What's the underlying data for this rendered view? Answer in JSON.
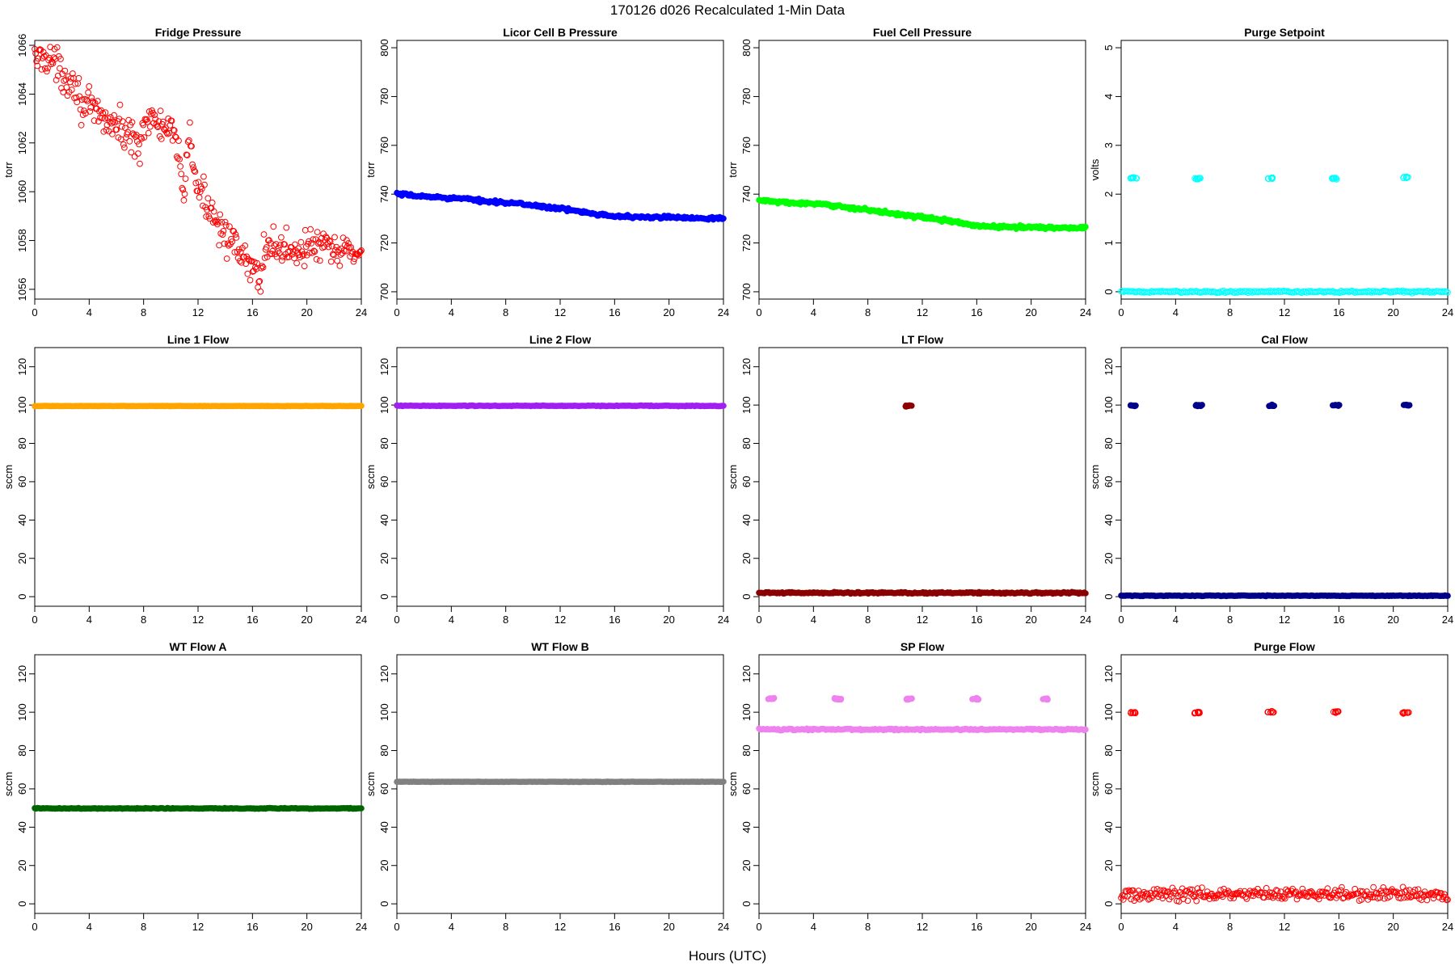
{
  "figure": {
    "title": "170126   d026   Recalculated 1-Min Data",
    "xlabel": "Hours (UTC)"
  },
  "chart_data": [
    {
      "type": "scatter",
      "title": "Fridge Pressure",
      "ylabel": "torr",
      "xlim": [
        0,
        24
      ],
      "ylim": [
        1055.6,
        1066.2
      ],
      "xticks": [
        0,
        4,
        8,
        12,
        16,
        20,
        24
      ],
      "yticks": [
        1056,
        1058,
        1060,
        1062,
        1064,
        1066
      ],
      "marker": "open",
      "color": "#ff0000",
      "series": [
        {
          "x": [
            0,
            1,
            2,
            3,
            3.5,
            4,
            5,
            6,
            7,
            7.8,
            8,
            9,
            10,
            10.5,
            10.9,
            11.0,
            11.3,
            11.4,
            12,
            13,
            14,
            15,
            16,
            16.7,
            16.8,
            17,
            18,
            19,
            20,
            21,
            22,
            23,
            24
          ],
          "y": [
            1065.4,
            1065.6,
            1064.8,
            1064.5,
            1063.5,
            1063.4,
            1063.0,
            1062.7,
            1062.3,
            1061.9,
            1063.0,
            1062.8,
            1062.4,
            1061.7,
            1060.3,
            1060.0,
            1062.5,
            1062.0,
            1060.0,
            1059.3,
            1058.3,
            1057.4,
            1056.8,
            1056.5,
            1057.6,
            1057.8,
            1057.7,
            1057.6,
            1057.7,
            1057.8,
            1057.5,
            1057.6,
            1057.5
          ]
        }
      ],
      "spread": 0.35,
      "point_count": 380
    },
    {
      "type": "scatter",
      "title": "Licor Cell B Pressure",
      "ylabel": "torr",
      "xlim": [
        0,
        24
      ],
      "ylim": [
        697,
        803
      ],
      "xticks": [
        0,
        4,
        8,
        12,
        16,
        20,
        24
      ],
      "yticks": [
        700,
        720,
        740,
        760,
        780,
        800
      ],
      "marker": "filled",
      "color": "#0000ff",
      "series": [
        {
          "x": [
            0,
            2,
            4,
            6,
            8,
            10,
            12,
            14,
            16,
            18,
            20,
            22,
            24
          ],
          "y": [
            740,
            739,
            738.5,
            737.5,
            736.5,
            735.5,
            734,
            732.5,
            731,
            730.5,
            730.5,
            730.3,
            730.1
          ]
        }
      ],
      "spread": 0.3,
      "point_count": 260
    },
    {
      "type": "scatter",
      "title": "Fuel Cell Pressure",
      "ylabel": "torr",
      "xlim": [
        0,
        24
      ],
      "ylim": [
        697,
        803
      ],
      "xticks": [
        0,
        4,
        8,
        12,
        16,
        20,
        24
      ],
      "yticks": [
        700,
        720,
        740,
        760,
        780,
        800
      ],
      "marker": "filled",
      "color": "#00ff00",
      "series": [
        {
          "x": [
            0,
            2,
            4,
            6,
            8,
            10,
            12,
            14,
            16,
            18,
            20,
            22,
            24
          ],
          "y": [
            737.5,
            736.5,
            736,
            735,
            733.5,
            732,
            730.5,
            729,
            727,
            726.5,
            726.5,
            726.2,
            726.3
          ]
        }
      ],
      "spread": 0.3,
      "point_count": 260
    },
    {
      "type": "scatter",
      "title": "Purge Setpoint",
      "ylabel": "volts",
      "xlim": [
        0,
        24
      ],
      "ylim": [
        -0.15,
        5.15
      ],
      "xticks": [
        0,
        4,
        8,
        12,
        16,
        20,
        24
      ],
      "yticks": [
        0,
        1,
        2,
        3,
        4,
        5
      ],
      "marker": "open",
      "color": "#00ffff",
      "series": [
        {
          "x": [
            0,
            24
          ],
          "y": [
            0,
            0
          ]
        }
      ],
      "clusters": [
        {
          "x": 0.9,
          "y": 2.33
        },
        {
          "x": 5.6,
          "y": 2.32
        },
        {
          "x": 10.9,
          "y": 2.33
        },
        {
          "x": 15.7,
          "y": 2.32
        },
        {
          "x": 20.9,
          "y": 2.34
        }
      ],
      "spread": 0.01,
      "point_count": 240
    },
    {
      "type": "scatter",
      "title": "Line 1 Flow",
      "ylabel": "sccm",
      "xlim": [
        0,
        24
      ],
      "ylim": [
        -5,
        130
      ],
      "xticks": [
        0,
        4,
        8,
        12,
        16,
        20,
        24
      ],
      "yticks": [
        0,
        20,
        40,
        60,
        80,
        100,
        120
      ],
      "marker": "filled",
      "color": "#ffa500",
      "series": [
        {
          "x": [
            0,
            24
          ],
          "y": [
            99.5,
            99.5
          ]
        }
      ],
      "spread": 0.05,
      "point_count": 240
    },
    {
      "type": "scatter",
      "title": "Line 2 Flow",
      "ylabel": "sccm",
      "xlim": [
        0,
        24
      ],
      "ylim": [
        -5,
        130
      ],
      "xticks": [
        0,
        4,
        8,
        12,
        16,
        20,
        24
      ],
      "yticks": [
        0,
        20,
        40,
        60,
        80,
        100,
        120
      ],
      "marker": "filled",
      "color": "#a020f0",
      "series": [
        {
          "x": [
            0,
            24
          ],
          "y": [
            99.6,
            99.6
          ]
        }
      ],
      "spread": 0.1,
      "point_count": 240
    },
    {
      "type": "scatter",
      "title": "LT Flow",
      "ylabel": "sccm",
      "xlim": [
        0,
        24
      ],
      "ylim": [
        -5,
        130
      ],
      "xticks": [
        0,
        4,
        8,
        12,
        16,
        20,
        24
      ],
      "yticks": [
        0,
        20,
        40,
        60,
        80,
        100,
        120
      ],
      "marker": "filled",
      "color": "#8b0000",
      "series": [
        {
          "x": [
            0,
            24
          ],
          "y": [
            2,
            2
          ]
        }
      ],
      "clusters": [
        {
          "x": 11.0,
          "y": 99.5
        }
      ],
      "spread": 0.2,
      "point_count": 240
    },
    {
      "type": "scatter",
      "title": "Cal Flow",
      "ylabel": "sccm",
      "xlim": [
        0,
        24
      ],
      "ylim": [
        -5,
        130
      ],
      "xticks": [
        0,
        4,
        8,
        12,
        16,
        20,
        24
      ],
      "yticks": [
        0,
        20,
        40,
        60,
        80,
        100,
        120
      ],
      "marker": "filled",
      "color": "#00008b",
      "series": [
        {
          "x": [
            0,
            24
          ],
          "y": [
            0.5,
            0.5
          ]
        }
      ],
      "clusters": [
        {
          "x": 0.9,
          "y": 99.8
        },
        {
          "x": 5.7,
          "y": 99.8
        },
        {
          "x": 11.0,
          "y": 99.8
        },
        {
          "x": 15.8,
          "y": 99.8
        },
        {
          "x": 21.0,
          "y": 99.8
        }
      ],
      "spread": 0.1,
      "point_count": 240
    },
    {
      "type": "scatter",
      "title": "WT Flow A",
      "ylabel": "sccm",
      "xlim": [
        0,
        24
      ],
      "ylim": [
        -5,
        130
      ],
      "xticks": [
        0,
        4,
        8,
        12,
        16,
        20,
        24
      ],
      "yticks": [
        0,
        20,
        40,
        60,
        80,
        100,
        120
      ],
      "marker": "filled",
      "color": "#006400",
      "series": [
        {
          "x": [
            0,
            24
          ],
          "y": [
            49.8,
            49.8
          ]
        }
      ],
      "spread": 0.1,
      "point_count": 240
    },
    {
      "type": "scatter",
      "title": "WT Flow B",
      "ylabel": "sccm",
      "xlim": [
        0,
        24
      ],
      "ylim": [
        -5,
        130
      ],
      "xticks": [
        0,
        4,
        8,
        12,
        16,
        20,
        24
      ],
      "yticks": [
        0,
        20,
        40,
        60,
        80,
        100,
        120
      ],
      "marker": "filled",
      "color": "#808080",
      "series": [
        {
          "x": [
            0,
            24
          ],
          "y": [
            63.7,
            63.7
          ]
        }
      ],
      "spread": 0.05,
      "point_count": 240
    },
    {
      "type": "scatter",
      "title": "SP Flow",
      "ylabel": "sccm",
      "xlim": [
        0,
        24
      ],
      "ylim": [
        -5,
        130
      ],
      "xticks": [
        0,
        4,
        8,
        12,
        16,
        20,
        24
      ],
      "yticks": [
        0,
        20,
        40,
        60,
        80,
        100,
        120
      ],
      "marker": "filled",
      "color": "#ee82ee",
      "series": [
        {
          "x": [
            0,
            24
          ],
          "y": [
            91,
            91
          ]
        }
      ],
      "clusters": [
        {
          "x": 0.9,
          "y": 107
        },
        {
          "x": 5.8,
          "y": 107
        },
        {
          "x": 11.0,
          "y": 107
        },
        {
          "x": 15.9,
          "y": 107
        },
        {
          "x": 21.0,
          "y": 107
        }
      ],
      "spread": 0.2,
      "point_count": 240
    },
    {
      "type": "scatter",
      "title": "Purge Flow",
      "ylabel": "sccm",
      "xlim": [
        0,
        24
      ],
      "ylim": [
        -5,
        130
      ],
      "xticks": [
        0,
        4,
        8,
        12,
        16,
        20,
        24
      ],
      "yticks": [
        0,
        20,
        40,
        60,
        80,
        100,
        120
      ],
      "marker": "open",
      "color": "#ff0000",
      "series": [
        {
          "x": [
            0,
            24
          ],
          "y": [
            5,
            5
          ]
        }
      ],
      "clusters": [
        {
          "x": 0.9,
          "y": 99.8
        },
        {
          "x": 5.6,
          "y": 99.8
        },
        {
          "x": 11.0,
          "y": 100.2
        },
        {
          "x": 15.8,
          "y": 100.1
        },
        {
          "x": 20.9,
          "y": 99.6
        }
      ],
      "spread": 1.6,
      "point_count": 300
    }
  ]
}
